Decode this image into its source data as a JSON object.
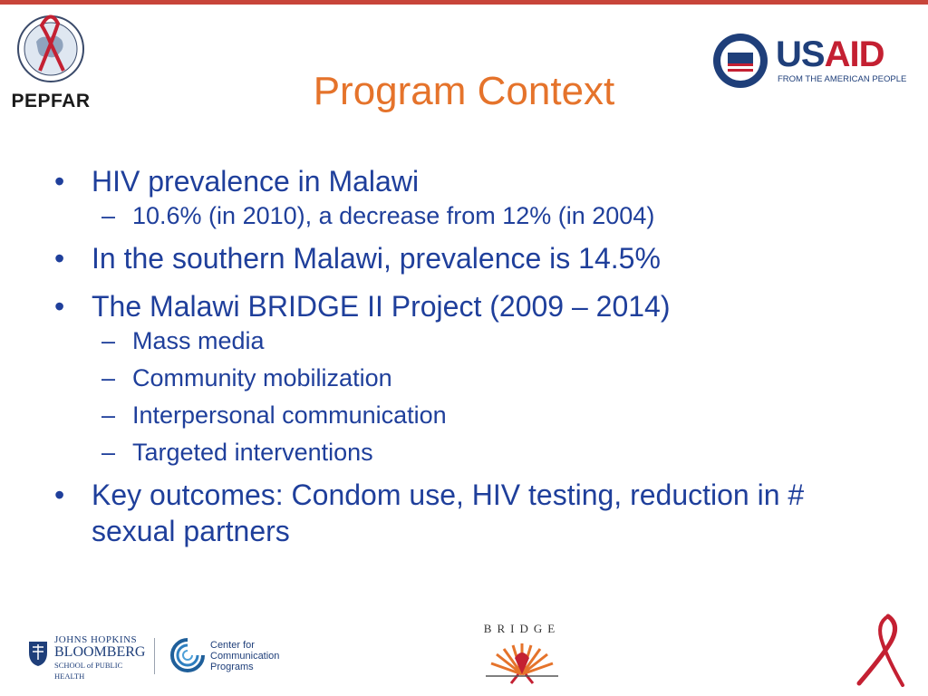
{
  "colors": {
    "top_rule": "#c8453a",
    "title": "#e5732b",
    "body_text": "#1f3f9b",
    "usaid_us": "#1f3f7a",
    "usaid_aid": "#c42032",
    "ribbon": "#c42032"
  },
  "header": {
    "pepfar_logo_text": "PEPFAR",
    "usaid_logo": {
      "word_us": "US",
      "word_aid": "AID",
      "tagline": "FROM THE AMERICAN PEOPLE"
    }
  },
  "slide": {
    "title": "Program Context",
    "bullets": [
      {
        "text": "HIV prevalence in Malawi",
        "sub": [
          "10.6% (in 2010), a decrease from 12% (in 2004)"
        ]
      },
      {
        "text": "In the southern Malawi, prevalence is 14.5%",
        "sub": []
      },
      {
        "text": "The Malawi BRIDGE II Project (2009 – 2014)",
        "sub": [
          "Mass media",
          "Community mobilization",
          "Interpersonal communication",
          "Targeted interventions"
        ]
      },
      {
        "text": "Key outcomes: Condom use, HIV testing, reduction in # sexual partners",
        "sub": []
      }
    ],
    "bullet_glyph": "•",
    "dash_glyph": "–"
  },
  "footer": {
    "jhu_logo": {
      "line1": "JOHNS HOPKINS",
      "line2": "BLOOMBERG",
      "line3": "SCHOOL of PUBLIC HEALTH"
    },
    "ccp_logo": {
      "line1": "Center for",
      "line2": "Communication",
      "line3": "Programs"
    },
    "bridge_logo_text": "BRIDGE",
    "icons": [
      "globe-seal-icon",
      "usaid-seal-icon",
      "jhu-shield-icon",
      "ccp-swirl-icon",
      "bridge-sunburst-icon",
      "awareness-ribbon-icon"
    ]
  }
}
